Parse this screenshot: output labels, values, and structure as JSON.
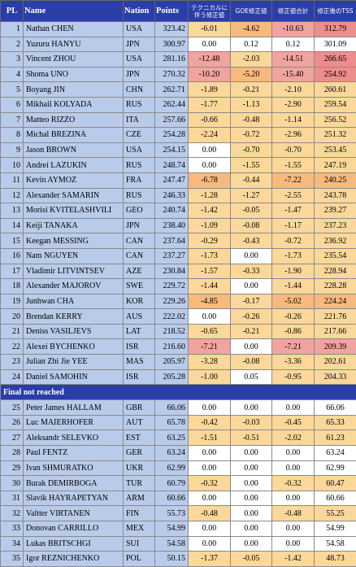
{
  "headers": {
    "pl": "PL",
    "name": "Name",
    "nation": "Nation",
    "points": "Points",
    "tech_adj": "テクニカルに伴う修正値",
    "goe_adj": "GOE修正値",
    "total_adj": "修正値合計",
    "tss_after": "修正後のTSS"
  },
  "rows": [
    {
      "pl": "1",
      "name": "Nathan CHEN",
      "nation": "USA",
      "points": "323.42",
      "tech": "-6.01",
      "goe": "-4.62",
      "total": "-10.63",
      "tss": "312.79",
      "c": [
        "y",
        "o",
        "r",
        "rr"
      ]
    },
    {
      "pl": "2",
      "name": "Yuzuru HANYU",
      "nation": "JPN",
      "points": "300.97",
      "tech": "0.00",
      "goe": "0.12",
      "total": "0.12",
      "tss": "301.09",
      "c": [
        "",
        "",
        "",
        ""
      ]
    },
    {
      "pl": "3",
      "name": "Vincent ZHOU",
      "nation": "USA",
      "points": "281.16",
      "tech": "-12.48",
      "goe": "-2.03",
      "total": "-14.51",
      "tss": "266.65",
      "c": [
        "r",
        "y",
        "r",
        "rr"
      ]
    },
    {
      "pl": "4",
      "name": "Shoma UNO",
      "nation": "JPN",
      "points": "270.32",
      "tech": "-10.20",
      "goe": "-5.20",
      "total": "-15.40",
      "tss": "254.92",
      "c": [
        "r",
        "o",
        "r",
        "rr"
      ]
    },
    {
      "pl": "5",
      "name": "Boyang JIN",
      "nation": "CHN",
      "points": "262.71",
      "tech": "-1.89",
      "goe": "-0.21",
      "total": "-2.10",
      "tss": "260.61",
      "c": [
        "y",
        "y",
        "y",
        "y"
      ]
    },
    {
      "pl": "6",
      "name": "Mikhail KOLYADA",
      "nation": "RUS",
      "points": "262.44",
      "tech": "-1.77",
      "goe": "-1.13",
      "total": "-2.90",
      "tss": "259.54",
      "c": [
        "y",
        "y",
        "y",
        "y"
      ]
    },
    {
      "pl": "7",
      "name": "Matteo RIZZO",
      "nation": "ITA",
      "points": "257.66",
      "tech": "-0.66",
      "goe": "-0.48",
      "total": "-1.14",
      "tss": "256.52",
      "c": [
        "y",
        "y",
        "y",
        "y"
      ]
    },
    {
      "pl": "8",
      "name": "Michal BREZINA",
      "nation": "CZE",
      "points": "254.28",
      "tech": "-2.24",
      "goe": "-0.72",
      "total": "-2.96",
      "tss": "251.32",
      "c": [
        "y",
        "y",
        "y",
        "y"
      ]
    },
    {
      "pl": "9",
      "name": "Jason BROWN",
      "nation": "USA",
      "points": "254.15",
      "tech": "0.00",
      "goe": "-0.70",
      "total": "-0.70",
      "tss": "253.45",
      "c": [
        "",
        "y",
        "y",
        "y"
      ]
    },
    {
      "pl": "10",
      "name": "Andrei LAZUKIN",
      "nation": "RUS",
      "points": "248.74",
      "tech": "0.00",
      "goe": "-1.55",
      "total": "-1.55",
      "tss": "247.19",
      "c": [
        "",
        "y",
        "y",
        "y"
      ]
    },
    {
      "pl": "11",
      "name": "Kevin AYMOZ",
      "nation": "FRA",
      "points": "247.47",
      "tech": "-6.78",
      "goe": "-0.44",
      "total": "-7.22",
      "tss": "240.25",
      "c": [
        "o",
        "y",
        "o",
        "o"
      ]
    },
    {
      "pl": "12",
      "name": "Alexander SAMARIN",
      "nation": "RUS",
      "points": "246.33",
      "tech": "-1.28",
      "goe": "-1.27",
      "total": "-2.55",
      "tss": "243.78",
      "c": [
        "y",
        "y",
        "y",
        "y"
      ]
    },
    {
      "pl": "13",
      "name": "Morisi KVITELASHVILI",
      "nation": "GEO",
      "points": "240.74",
      "tech": "-1.42",
      "goe": "-0.05",
      "total": "-1.47",
      "tss": "239.27",
      "c": [
        "y",
        "y",
        "y",
        "y"
      ]
    },
    {
      "pl": "14",
      "name": "Keiji TANAKA",
      "nation": "JPN",
      "points": "238.40",
      "tech": "-1.09",
      "goe": "-0.08",
      "total": "-1.17",
      "tss": "237.23",
      "c": [
        "y",
        "y",
        "y",
        "y"
      ]
    },
    {
      "pl": "15",
      "name": "Keegan MESSING",
      "nation": "CAN",
      "points": "237.64",
      "tech": "-0.29",
      "goe": "-0.43",
      "total": "-0.72",
      "tss": "236.92",
      "c": [
        "y",
        "y",
        "y",
        "y"
      ]
    },
    {
      "pl": "16",
      "name": "Nam NGUYEN",
      "nation": "CAN",
      "points": "237.27",
      "tech": "-1.73",
      "goe": "0.00",
      "total": "-1.73",
      "tss": "235.54",
      "c": [
        "y",
        "",
        "y",
        "y"
      ]
    },
    {
      "pl": "17",
      "name": "Vladimir LITVINTSEV",
      "nation": "AZE",
      "points": "230.84",
      "tech": "-1.57",
      "goe": "-0.33",
      "total": "-1.90",
      "tss": "228.94",
      "c": [
        "y",
        "y",
        "y",
        "y"
      ]
    },
    {
      "pl": "18",
      "name": "Alexander MAJOROV",
      "nation": "SWE",
      "points": "229.72",
      "tech": "-1.44",
      "goe": "0.00",
      "total": "-1.44",
      "tss": "228.28",
      "c": [
        "y",
        "",
        "y",
        "y"
      ]
    },
    {
      "pl": "19",
      "name": "Junhwan CHA",
      "nation": "KOR",
      "points": "229.26",
      "tech": "-4.85",
      "goe": "-0.17",
      "total": "-5.02",
      "tss": "224.24",
      "c": [
        "o",
        "y",
        "o",
        "o"
      ]
    },
    {
      "pl": "20",
      "name": "Brendan KERRY",
      "nation": "AUS",
      "points": "222.02",
      "tech": "0.00",
      "goe": "-0.26",
      "total": "-0.26",
      "tss": "221.76",
      "c": [
        "",
        "y",
        "y",
        "y"
      ]
    },
    {
      "pl": "21",
      "name": "Deniss VASILJEVS",
      "nation": "LAT",
      "points": "218.52",
      "tech": "-0.65",
      "goe": "-0.21",
      "total": "-0.86",
      "tss": "217.66",
      "c": [
        "y",
        "y",
        "y",
        "y"
      ]
    },
    {
      "pl": "22",
      "name": "Alexei BYCHENKO",
      "nation": "ISR",
      "points": "216.60",
      "tech": "-7.21",
      "goe": "0.00",
      "total": "-7.21",
      "tss": "209.39",
      "c": [
        "r",
        "",
        "r",
        "r"
      ]
    },
    {
      "pl": "23",
      "name": "Julian Zhi Jie YEE",
      "nation": "MAS",
      "points": "205.97",
      "tech": "-3.28",
      "goe": "-0.08",
      "total": "-3.36",
      "tss": "202.61",
      "c": [
        "y",
        "y",
        "y",
        "y"
      ]
    },
    {
      "pl": "24",
      "name": "Daniel SAMOHIN",
      "nation": "ISR",
      "points": "205.28",
      "tech": "-1.00",
      "goe": "0.05",
      "total": "-0.95",
      "tss": "204.33",
      "c": [
        "y",
        "",
        "y",
        "y"
      ]
    }
  ],
  "separator": "Final not reached",
  "rows2": [
    {
      "pl": "25",
      "name": "Peter James HALLAM",
      "nation": "GBR",
      "points": "66.06",
      "tech": "0.00",
      "goe": "0.00",
      "total": "0.00",
      "tss": "66.06",
      "c": [
        "",
        "",
        "",
        ""
      ]
    },
    {
      "pl": "26",
      "name": "Luc MAIERHOFER",
      "nation": "AUT",
      "points": "65.78",
      "tech": "-0.42",
      "goe": "-0.03",
      "total": "-0.45",
      "tss": "65.33",
      "c": [
        "y",
        "y",
        "y",
        "y"
      ]
    },
    {
      "pl": "27",
      "name": "Aleksandr SELEVKO",
      "nation": "EST",
      "points": "63.25",
      "tech": "-1.51",
      "goe": "-0.51",
      "total": "-2.02",
      "tss": "61.23",
      "c": [
        "y",
        "y",
        "y",
        "y"
      ]
    },
    {
      "pl": "28",
      "name": "Paul FENTZ",
      "nation": "GER",
      "points": "63.24",
      "tech": "0.00",
      "goe": "0.00",
      "total": "0.00",
      "tss": "63.24",
      "c": [
        "",
        "",
        "",
        ""
      ]
    },
    {
      "pl": "29",
      "name": "Ivan SHMURATKO",
      "nation": "UKR",
      "points": "62.99",
      "tech": "0.00",
      "goe": "0.00",
      "total": "0.00",
      "tss": "62.99",
      "c": [
        "",
        "",
        "",
        ""
      ]
    },
    {
      "pl": "30",
      "name": "Burak DEMIRBOGA",
      "nation": "TUR",
      "points": "60.79",
      "tech": "-0.32",
      "goe": "0.00",
      "total": "-0.32",
      "tss": "60.47",
      "c": [
        "y",
        "",
        "y",
        "y"
      ]
    },
    {
      "pl": "31",
      "name": "Slavik HAYRAPETYAN",
      "nation": "ARM",
      "points": "60.66",
      "tech": "0.00",
      "goe": "0.00",
      "total": "0.00",
      "tss": "60.66",
      "c": [
        "",
        "",
        "",
        ""
      ]
    },
    {
      "pl": "32",
      "name": "Valtter VIRTANEN",
      "nation": "FIN",
      "points": "55.73",
      "tech": "-0.48",
      "goe": "0.00",
      "total": "-0.48",
      "tss": "55.25",
      "c": [
        "y",
        "",
        "y",
        "y"
      ]
    },
    {
      "pl": "33",
      "name": "Donovan CARRILLO",
      "nation": "MEX",
      "points": "54.99",
      "tech": "0.00",
      "goe": "0.00",
      "total": "0.00",
      "tss": "54.99",
      "c": [
        "",
        "",
        "",
        ""
      ]
    },
    {
      "pl": "34",
      "name": "Lukas BRITSCHGI",
      "nation": "SUI",
      "points": "54.58",
      "tech": "0.00",
      "goe": "0.00",
      "total": "0.00",
      "tss": "54.58",
      "c": [
        "",
        "",
        "",
        ""
      ]
    },
    {
      "pl": "35",
      "name": "Igor REZNICHENKO",
      "nation": "POL",
      "points": "50.15",
      "tech": "-1.37",
      "goe": "-0.05",
      "total": "-1.42",
      "tss": "48.73",
      "c": [
        "y",
        "y",
        "y",
        "y"
      ]
    }
  ]
}
